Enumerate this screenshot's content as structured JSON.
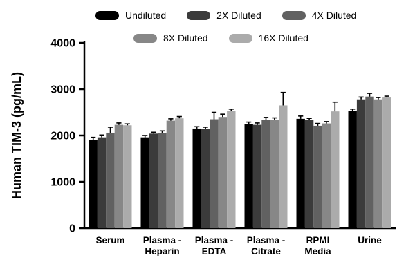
{
  "figure": {
    "background": "#ffffff"
  },
  "chart_data": {
    "type": "bar",
    "title": "",
    "xlabel": "",
    "ylabel": "Human TIM-3 (pg/mL)",
    "ylim": [
      0,
      4000
    ],
    "yticks": [
      0,
      1000,
      2000,
      3000,
      4000
    ],
    "grid": false,
    "legend_position": "top",
    "categories": [
      "Serum",
      "Plasma -\nHeparin",
      "Plasma -\nEDTA",
      "Plasma -\nCitrate",
      "RPMI\nMedia",
      "Urine"
    ],
    "series": [
      {
        "name": "Undiluted",
        "color": "#000000",
        "values": [
          1900,
          1960,
          2150,
          2240,
          2360,
          2530
        ],
        "errors": [
          60,
          40,
          40,
          50,
          60,
          40
        ]
      },
      {
        "name": "2X Diluted",
        "color": "#3b3b3b",
        "values": [
          1960,
          2040,
          2140,
          2230,
          2330,
          2780
        ],
        "errors": [
          50,
          30,
          40,
          40,
          40,
          50
        ]
      },
      {
        "name": "4X Diluted",
        "color": "#616161",
        "values": [
          2060,
          2060,
          2350,
          2330,
          2210,
          2840
        ],
        "errors": [
          120,
          40,
          150,
          60,
          50,
          70
        ]
      },
      {
        "name": "8X Diluted",
        "color": "#878787",
        "values": [
          2230,
          2320,
          2400,
          2340,
          2260,
          2780
        ],
        "errors": [
          40,
          40,
          60,
          40,
          40,
          40
        ]
      },
      {
        "name": "16X Diluted",
        "color": "#ababab",
        "values": [
          2220,
          2370,
          2530,
          2650,
          2520,
          2820
        ],
        "errors": [
          30,
          40,
          40,
          280,
          200,
          30
        ]
      }
    ],
    "legend_rows": [
      [
        "Undiluted",
        "2X Diluted",
        "4X Diluted"
      ],
      [
        "8X Diluted",
        "16X Diluted"
      ]
    ],
    "error_bar_color": "#000000",
    "axis_color": "#000000"
  }
}
